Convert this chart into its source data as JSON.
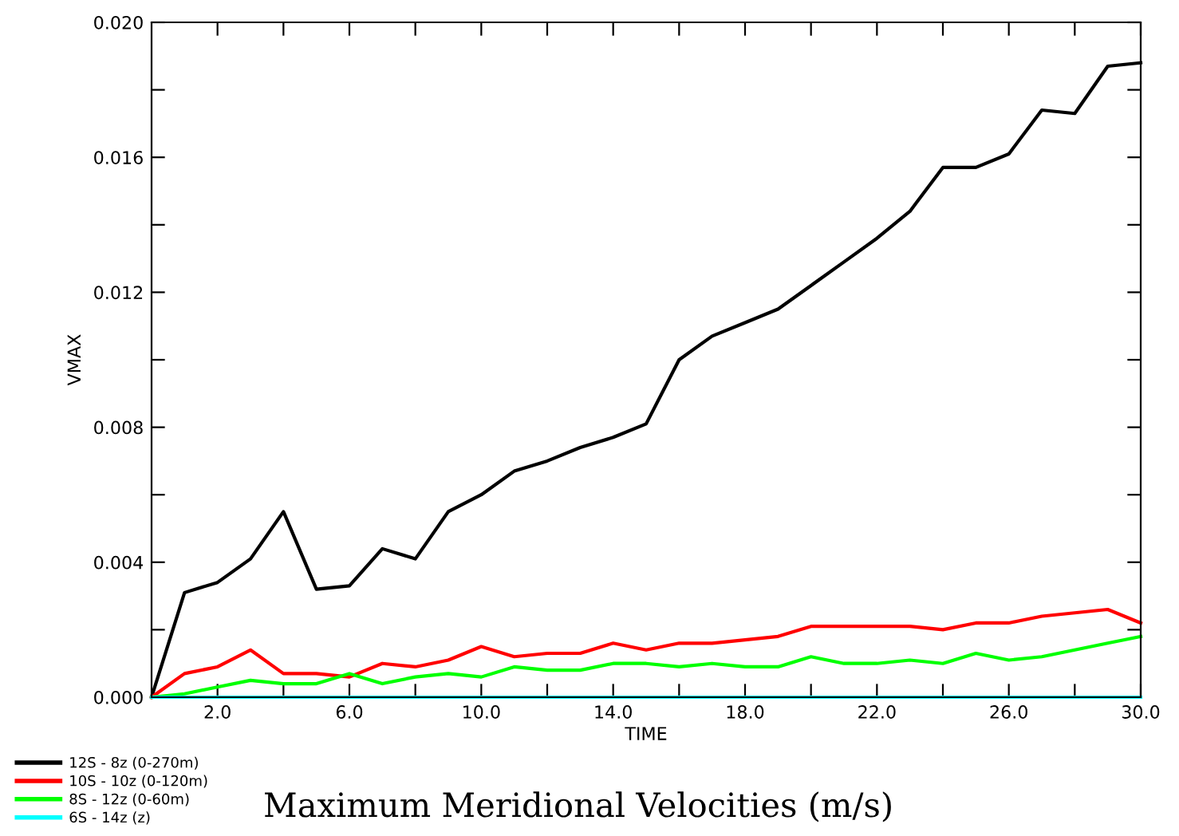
{
  "chart_data": {
    "type": "line",
    "title": "Maximum Meridional Velocities (m/s)",
    "xlabel": "TIME",
    "ylabel": "VMAX",
    "x": [
      0,
      1,
      2,
      3,
      4,
      5,
      6,
      7,
      8,
      9,
      10,
      11,
      12,
      13,
      14,
      15,
      16,
      17,
      18,
      19,
      20,
      21,
      22,
      23,
      24,
      25,
      26,
      27,
      28,
      29,
      30
    ],
    "series": [
      {
        "name": "12S - 8z (0-270m)",
        "color": "#000000",
        "values": [
          0,
          0.0031,
          0.0034,
          0.0041,
          0.0055,
          0.0032,
          0.0033,
          0.0044,
          0.0041,
          0.0055,
          0.006,
          0.0067,
          0.007,
          0.0074,
          0.0077,
          0.0081,
          0.01,
          0.0107,
          0.0111,
          0.0115,
          0.0122,
          0.0129,
          0.0136,
          0.0144,
          0.0157,
          0.0157,
          0.0161,
          0.0174,
          0.0173,
          0.0187,
          0.0188
        ]
      },
      {
        "name": "10S - 10z (0-120m)",
        "color": "#ff0000",
        "values": [
          0,
          0.0007,
          0.0009,
          0.0014,
          0.0007,
          0.0007,
          0.0006,
          0.001,
          0.0009,
          0.0011,
          0.0015,
          0.0012,
          0.0013,
          0.0013,
          0.0016,
          0.0014,
          0.0016,
          0.0016,
          0.0017,
          0.0018,
          0.0021,
          0.0021,
          0.0021,
          0.0021,
          0.002,
          0.0022,
          0.0022,
          0.0024,
          0.0025,
          0.0026,
          0.0022
        ]
      },
      {
        "name": "8S - 12z (0-60m)",
        "color": "#00ff00",
        "values": [
          0,
          0.0001,
          0.0003,
          0.0005,
          0.0004,
          0.0004,
          0.0007,
          0.0004,
          0.0006,
          0.0007,
          0.0006,
          0.0009,
          0.0008,
          0.0008,
          0.001,
          0.001,
          0.0009,
          0.001,
          0.0009,
          0.0009,
          0.0012,
          0.001,
          0.001,
          0.0011,
          0.001,
          0.0013,
          0.0011,
          0.0012,
          0.0014,
          0.0016,
          0.0018
        ]
      },
      {
        "name": "6S - 14z (z)",
        "color": "#00ffff",
        "values": [
          0,
          0,
          0,
          0,
          0,
          0,
          0,
          0,
          0,
          0,
          0,
          0,
          0,
          0,
          0,
          0,
          0,
          0,
          0,
          0,
          0,
          0,
          0,
          0,
          0,
          0,
          0,
          0,
          0,
          0,
          0
        ]
      }
    ],
    "xlim": [
      0,
      30
    ],
    "ylim": [
      0,
      0.02
    ],
    "xticks": [
      {
        "value": 2,
        "label": "2.0"
      },
      {
        "value": 4,
        "label": null
      },
      {
        "value": 6,
        "label": "6.0"
      },
      {
        "value": 8,
        "label": null
      },
      {
        "value": 10,
        "label": "10.0"
      },
      {
        "value": 12,
        "label": null
      },
      {
        "value": 14,
        "label": "14.0"
      },
      {
        "value": 16,
        "label": null
      },
      {
        "value": 18,
        "label": "18.0"
      },
      {
        "value": 20,
        "label": null
      },
      {
        "value": 22,
        "label": "22.0"
      },
      {
        "value": 24,
        "label": null
      },
      {
        "value": 26,
        "label": "26.0"
      },
      {
        "value": 28,
        "label": null
      },
      {
        "value": 30,
        "label": "30.0"
      }
    ],
    "yticks": [
      {
        "value": 0,
        "label": "0.000"
      },
      {
        "value": 0.002,
        "label": null
      },
      {
        "value": 0.004,
        "label": "0.004"
      },
      {
        "value": 0.006,
        "label": null
      },
      {
        "value": 0.008,
        "label": "0.008"
      },
      {
        "value": 0.01,
        "label": null
      },
      {
        "value": 0.012,
        "label": "0.012"
      },
      {
        "value": 0.014,
        "label": null
      },
      {
        "value": 0.016,
        "label": "0.016"
      },
      {
        "value": 0.018,
        "label": null
      },
      {
        "value": 0.02,
        "label": "0.020"
      }
    ],
    "grid": false,
    "legend": "bottom left",
    "marker": "none",
    "line_style": "solid"
  }
}
